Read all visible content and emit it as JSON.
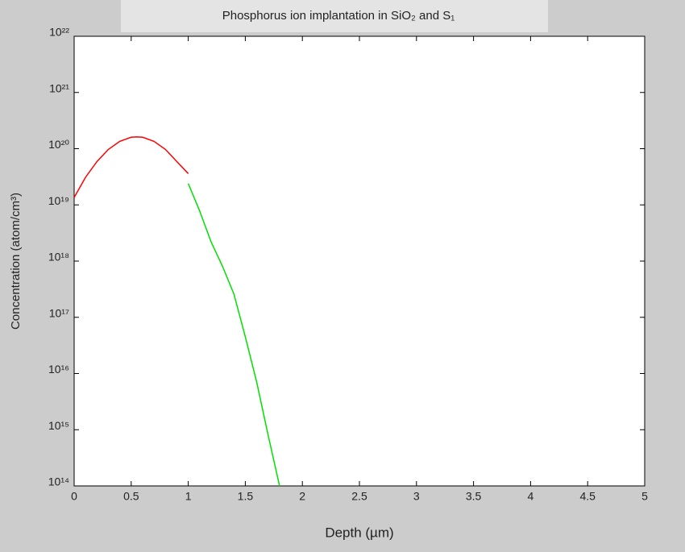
{
  "chart_data": {
    "type": "line",
    "title": "Phosphorus ion implantation in SiO₂ and S₁",
    "x_label": "Depth (µm)",
    "y_label": "Concentration (atom/cm³)",
    "log_y": true,
    "xlim": [
      0,
      5
    ],
    "xticks": [
      0,
      0.5,
      1,
      1.5,
      2,
      2.5,
      3,
      3.5,
      4,
      4.5,
      5
    ],
    "ylim": [
      100000000000000.0,
      1e+22
    ],
    "yticks": [
      {
        "value": 100000000000000.0,
        "label": "10¹⁴"
      },
      {
        "value": 1000000000000000.0,
        "label": "10¹⁵"
      },
      {
        "value": 1e+16,
        "label": "10¹⁶"
      },
      {
        "value": 1e+17,
        "label": "10¹⁷"
      },
      {
        "value": 1e+18,
        "label": "10¹⁸"
      },
      {
        "value": 1e+19,
        "label": "10¹⁹"
      },
      {
        "value": 1e+20,
        "label": "10²⁰"
      },
      {
        "value": 1e+21,
        "label": "10²¹"
      },
      {
        "value": 1e+22,
        "label": "10²²"
      }
    ],
    "grid": false,
    "series": [
      {
        "color": "#ff0000",
        "x": [
          0,
          0.1,
          0.2,
          0.3,
          0.4,
          0.5,
          0.55,
          0.6,
          0.7,
          0.8,
          0.9,
          1.0
        ],
        "values": [
          1.35e+19,
          3.1e+19,
          5.9e+19,
          9.7e+19,
          1.35e+20,
          1.6e+20,
          1.62e+20,
          1.6e+20,
          1.35e+20,
          9.7e+19,
          5.9e+19,
          3.6e+19
        ]
      },
      {
        "color": "#00e000",
        "x": [
          1.0,
          1.1,
          1.2,
          1.3,
          1.4,
          1.5,
          1.6,
          1.7,
          1.8
        ],
        "values": [
          2.4e+19,
          7.8e+18,
          2.2e+18,
          8.1e+17,
          2.6e+17,
          4.5e+16,
          7000000000000000.0,
          800000000000000.0,
          100000000000000.0
        ]
      }
    ]
  }
}
